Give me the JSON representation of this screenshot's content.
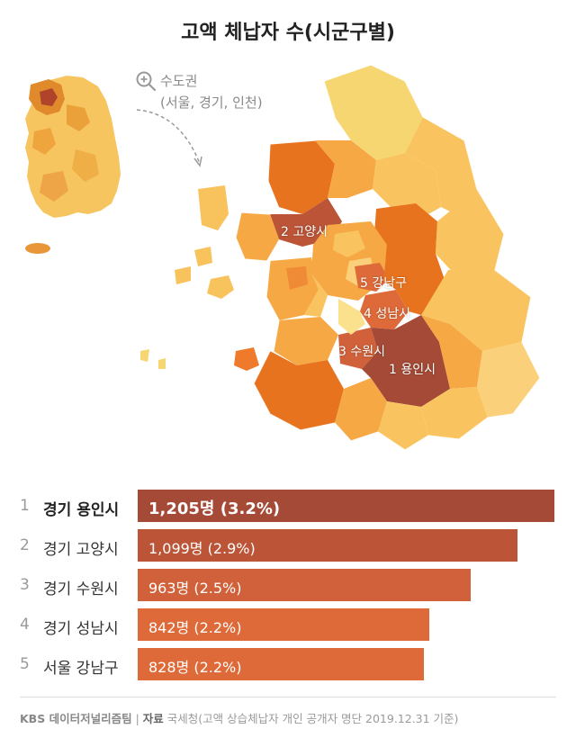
{
  "title": "고액 체납자 수(시군구별)",
  "inset": {
    "label_line1": "수도권",
    "label_line2": "(서울, 경기, 인천)",
    "zoom_icon": "zoom-in-icon"
  },
  "map_labels": [
    "2 고양시",
    "5 강남구",
    "4 성남시",
    "3 수원시",
    "1 용인시"
  ],
  "colors": {
    "rank1": "#a44a36",
    "rank2": "#bc5437",
    "rank3": "#d1613a",
    "rank4": "#df6a39",
    "rank5": "#df6a39",
    "map_dark": "#e8731f",
    "map_mid": "#f6a844",
    "map_light": "#f9c45f",
    "map_pale": "#f6d670"
  },
  "chart_data": {
    "type": "bar",
    "orientation": "horizontal",
    "ranks": [
      "1",
      "2",
      "3",
      "4",
      "5"
    ],
    "categories": [
      "경기 용인시",
      "경기 고양시",
      "경기 수원시",
      "경기 성남시",
      "서울 강남구"
    ],
    "values": [
      1205,
      1099,
      963,
      842,
      828
    ],
    "value_labels": [
      "1,205명 (3.2%)",
      "1,099명 (2.9%)",
      "963명 (2.5%)",
      "842명 (2.2%)",
      "828명 (2.2%)"
    ],
    "shares_percent": [
      3.2,
      2.9,
      2.5,
      2.2,
      2.2
    ]
  },
  "footer": {
    "brand": "KBS 데이터저널리즘팀",
    "separator": "|",
    "source_label": "자료",
    "source_text": "국세청(고액 상습체납자 개인 공개자 명단 2019.12.31 기준)"
  }
}
